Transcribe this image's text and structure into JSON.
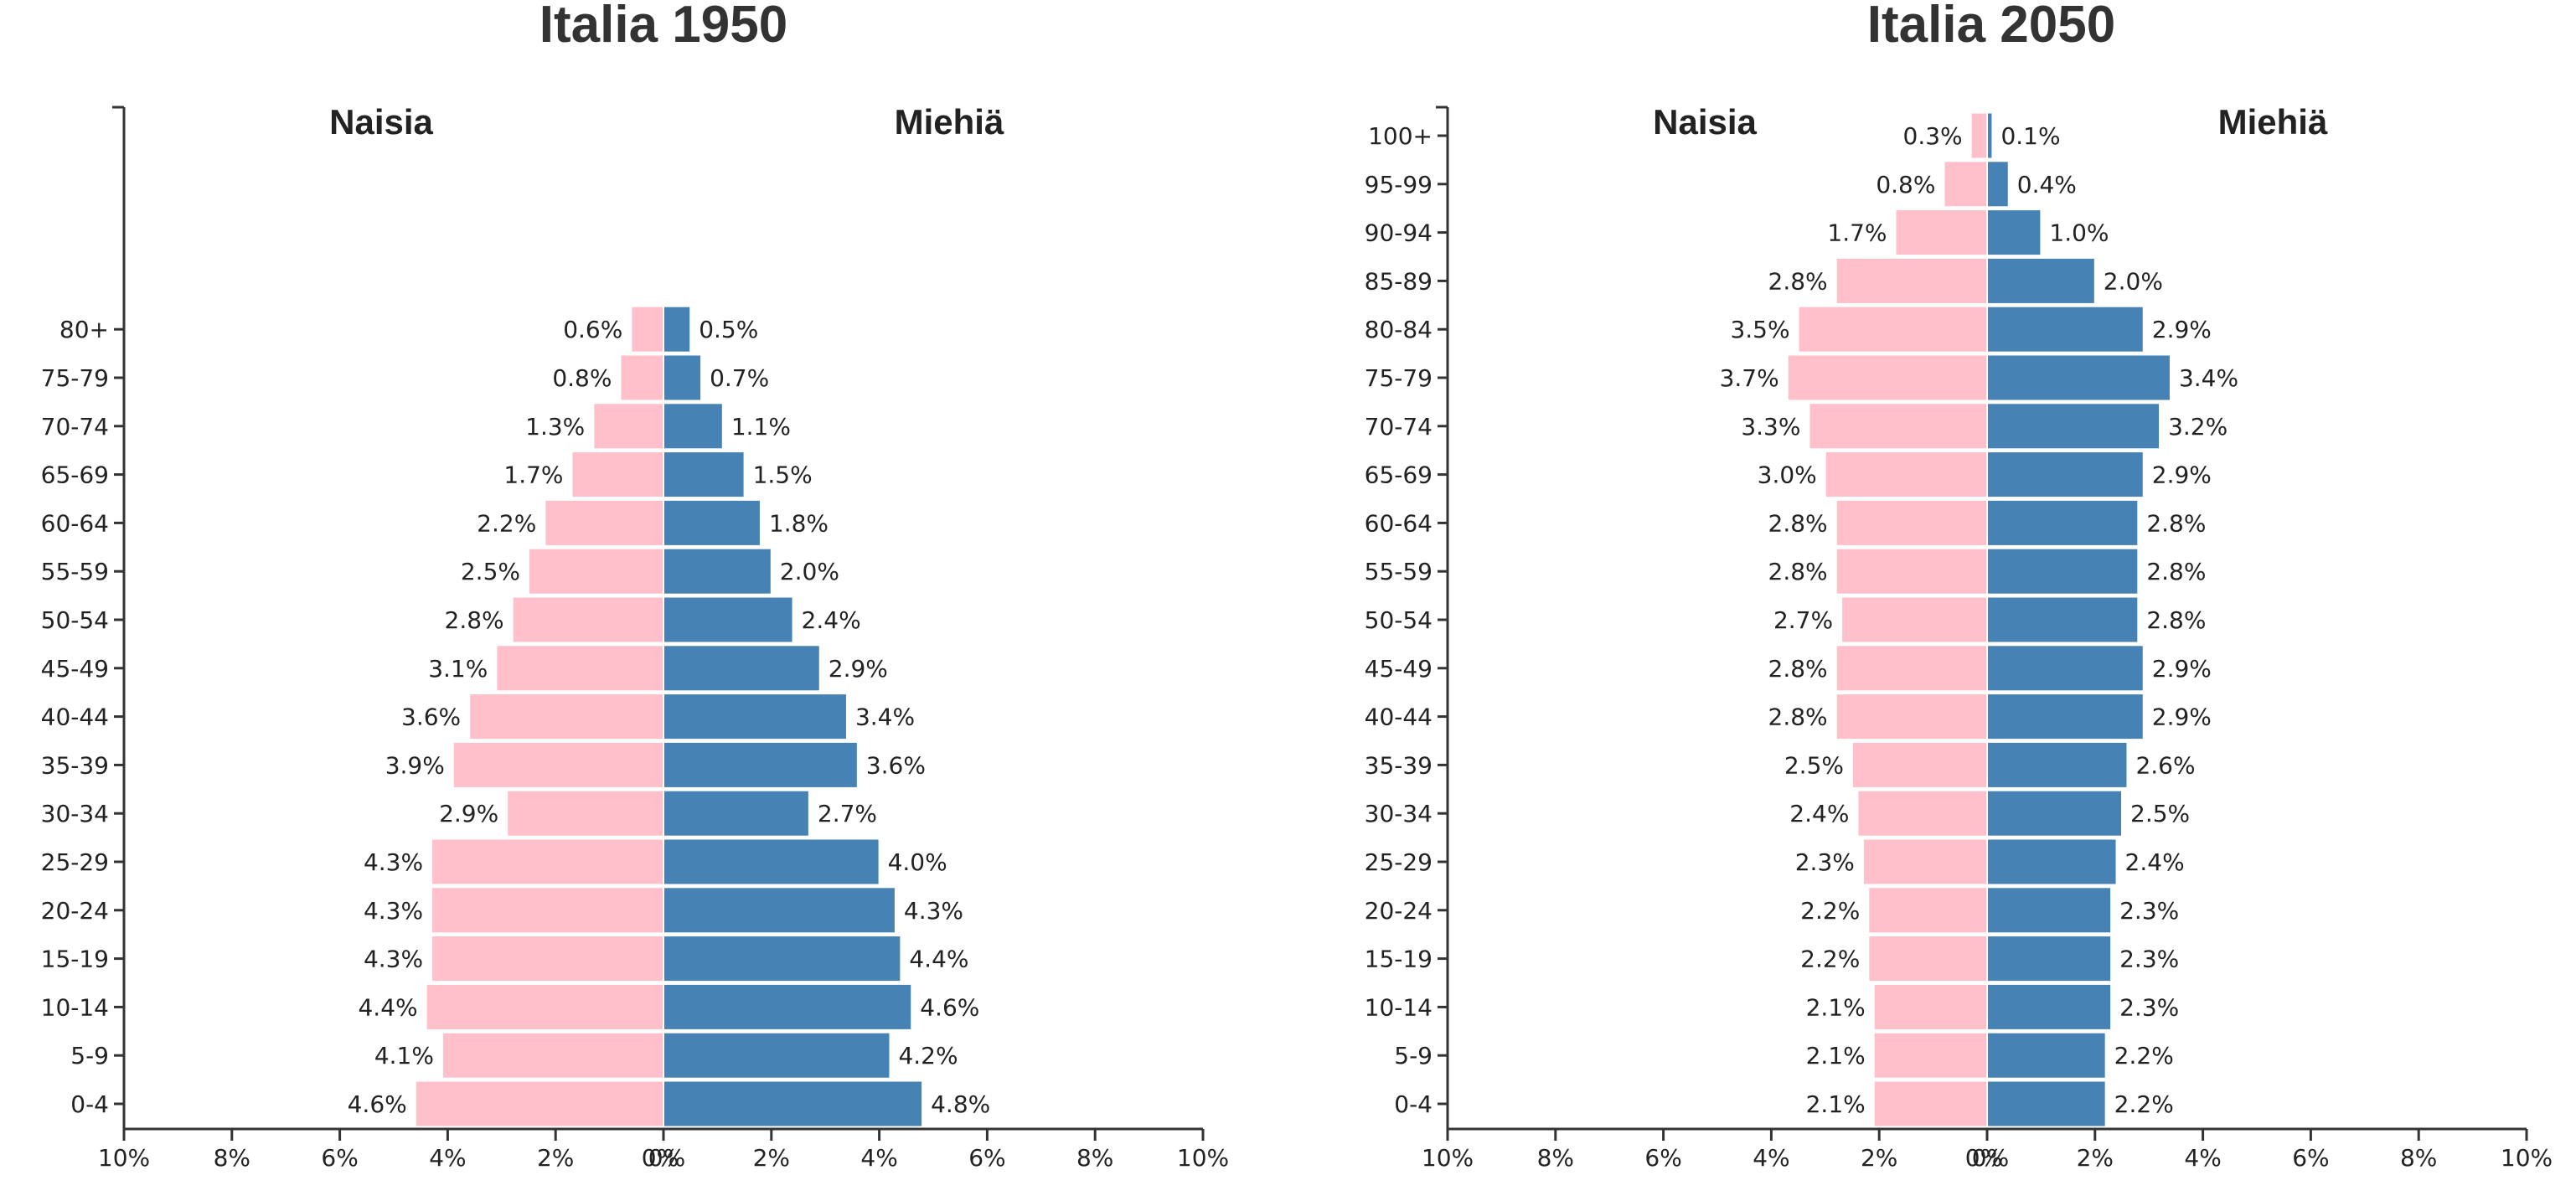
{
  "chart_data": [
    {
      "type": "bar",
      "orientation": "horizontal",
      "title": "Italia 1950",
      "left_label": "Naisia",
      "right_label": "Miehiä",
      "categories": [
        "0-4",
        "5-9",
        "10-14",
        "15-19",
        "20-24",
        "25-29",
        "30-34",
        "35-39",
        "40-44",
        "45-49",
        "50-54",
        "55-59",
        "60-64",
        "65-69",
        "70-74",
        "75-79",
        "80+"
      ],
      "series": [
        {
          "name": "Naisia",
          "color": "#ffc0cb",
          "values": [
            4.6,
            4.1,
            4.4,
            4.3,
            4.3,
            4.3,
            2.9,
            3.9,
            3.6,
            3.1,
            2.8,
            2.5,
            2.2,
            1.7,
            1.3,
            0.8,
            0.6
          ]
        },
        {
          "name": "Miehiä",
          "color": "#4682b4",
          "values": [
            4.8,
            4.2,
            4.6,
            4.4,
            4.3,
            4.0,
            2.7,
            3.6,
            3.4,
            2.9,
            2.4,
            2.0,
            1.8,
            1.5,
            1.1,
            0.7,
            0.5
          ]
        }
      ],
      "value_labels": {
        "Naisia": [
          "4.6%",
          "4.1%",
          "4.4%",
          "4.3%",
          "4.3%",
          "4.3%",
          "2.9%",
          "3.9%",
          "3.6%",
          "3.1%",
          "2.8%",
          "2.5%",
          "2.2%",
          "1.7%",
          "1.3%",
          "0.8%",
          "0.6%"
        ],
        "Miehiä": [
          "4.8%",
          "4.2%",
          "4.6%",
          "4.4%",
          "4.3%",
          "4.0%",
          "2.7%",
          "3.6%",
          "3.4%",
          "2.9%",
          "2.4%",
          "2.0%",
          "1.8%",
          "1.5%",
          "1.1%",
          "0.7%",
          "0.5%"
        ]
      },
      "xlim": [
        -10,
        10
      ],
      "x_ticks": [
        "10%",
        "8%",
        "6%",
        "4%",
        "2%",
        "0%",
        "0%",
        "2%",
        "4%",
        "6%",
        "8%",
        "10%"
      ],
      "grid": false
    },
    {
      "type": "bar",
      "orientation": "horizontal",
      "title": "Italia 2050",
      "left_label": "Naisia",
      "right_label": "Miehiä",
      "categories": [
        "0-4",
        "5-9",
        "10-14",
        "15-19",
        "20-24",
        "25-29",
        "30-34",
        "35-39",
        "40-44",
        "45-49",
        "50-54",
        "55-59",
        "60-64",
        "65-69",
        "70-74",
        "75-79",
        "80-84",
        "85-89",
        "90-94",
        "95-99",
        "100+"
      ],
      "series": [
        {
          "name": "Naisia",
          "color": "#ffc0cb",
          "values": [
            2.1,
            2.1,
            2.1,
            2.2,
            2.2,
            2.3,
            2.4,
            2.5,
            2.8,
            2.8,
            2.7,
            2.8,
            2.8,
            3.0,
            3.3,
            3.7,
            3.5,
            2.8,
            1.7,
            0.8,
            0.3
          ]
        },
        {
          "name": "Miehiä",
          "color": "#4682b4",
          "values": [
            2.2,
            2.2,
            2.3,
            2.3,
            2.3,
            2.4,
            2.5,
            2.6,
            2.9,
            2.9,
            2.8,
            2.8,
            2.8,
            2.9,
            3.2,
            3.4,
            2.9,
            2.0,
            1.0,
            0.4,
            0.1
          ]
        }
      ],
      "value_labels": {
        "Naisia": [
          "2.1%",
          "2.1%",
          "2.1%",
          "2.2%",
          "2.2%",
          "2.3%",
          "2.4%",
          "2.5%",
          "2.8%",
          "2.8%",
          "2.7%",
          "2.8%",
          "2.8%",
          "3.0%",
          "3.3%",
          "3.7%",
          "3.5%",
          "2.8%",
          "1.7%",
          "0.8%",
          "0.3%"
        ],
        "Miehiä": [
          "2.2%",
          "2.2%",
          "2.3%",
          "2.3%",
          "2.3%",
          "2.4%",
          "2.5%",
          "2.6%",
          "2.9%",
          "2.9%",
          "2.8%",
          "2.8%",
          "2.8%",
          "2.9%",
          "3.2%",
          "3.4%",
          "2.9%",
          "2.0%",
          "1.0%",
          "0.4%",
          "0.1%"
        ]
      },
      "xlim": [
        -10,
        10
      ],
      "x_ticks": [
        "10%",
        "8%",
        "6%",
        "4%",
        "2%",
        "0%",
        "0%",
        "2%",
        "4%",
        "6%",
        "8%",
        "10%"
      ],
      "grid": false
    }
  ]
}
